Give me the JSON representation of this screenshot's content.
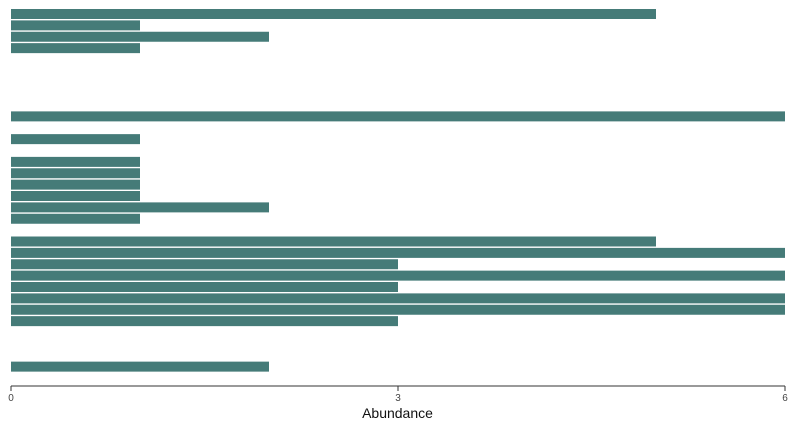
{
  "chart_data": {
    "type": "bar",
    "orientation": "horizontal",
    "title": "",
    "xlabel": "Abundance",
    "ylabel": "",
    "xlim": [
      0,
      6
    ],
    "xticks": [
      0,
      3,
      6
    ],
    "grid": false,
    "legend": "none",
    "bar_color": "#457b78",
    "values": [
      5,
      1,
      2,
      1,
      null,
      null,
      null,
      null,
      null,
      6,
      null,
      1,
      null,
      1,
      1,
      1,
      1,
      2,
      1,
      null,
      5,
      6,
      3,
      6,
      3,
      6,
      6,
      3,
      null,
      null,
      null,
      2
    ]
  }
}
